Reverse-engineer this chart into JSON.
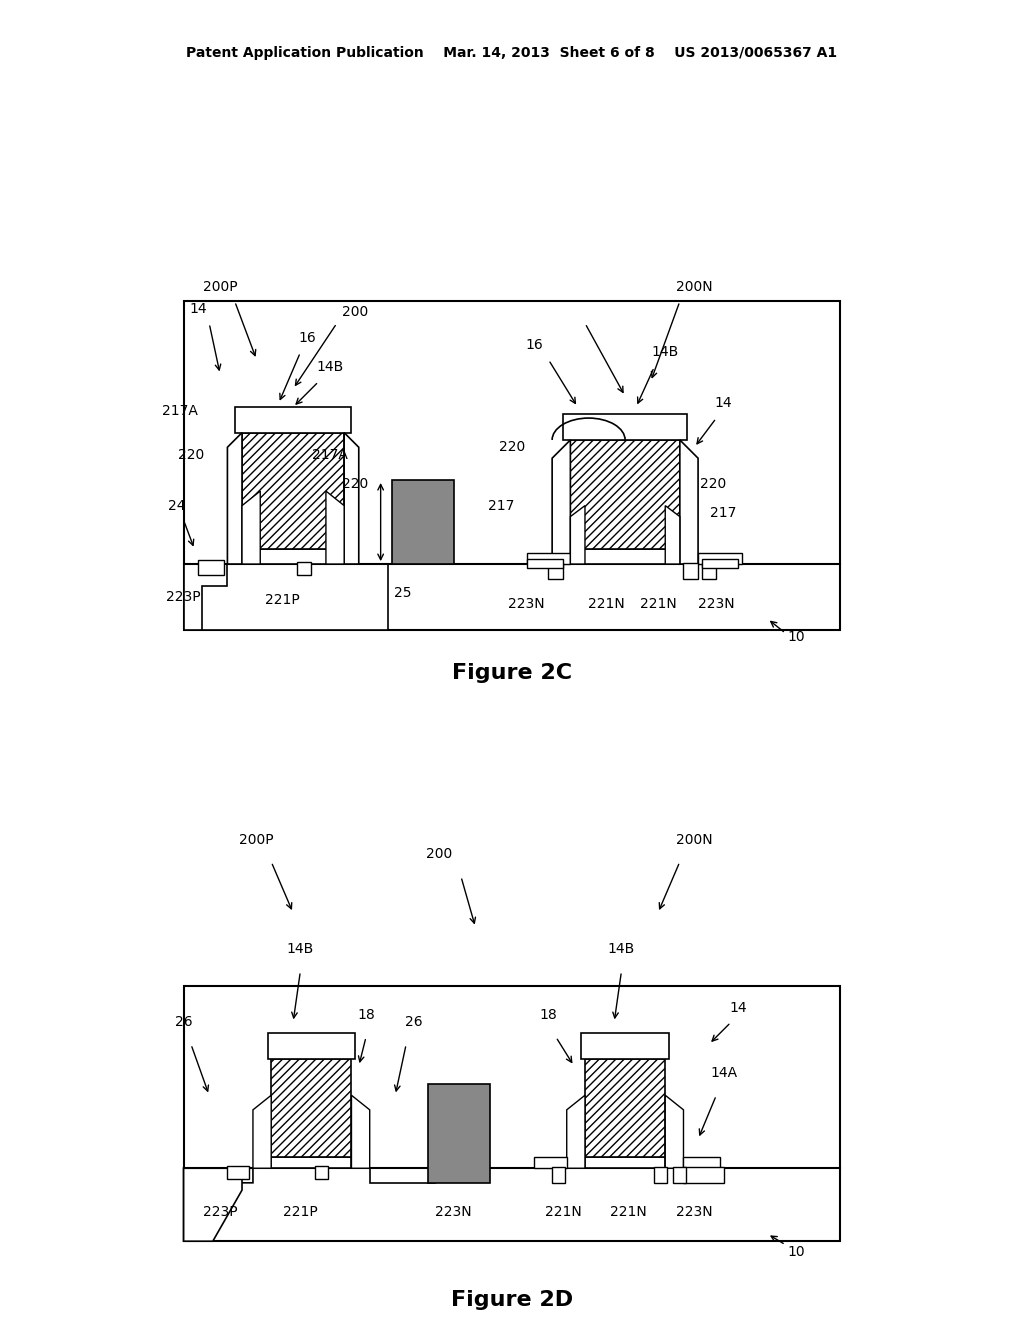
{
  "bg_color": "#ffffff",
  "line_color": "#000000",
  "hatch_color": "#000000",
  "gray_fill": "#888888",
  "header_text": "Patent Application Publication    Mar. 14, 2013  Sheet 6 of 8    US 2013/0065367 A1",
  "fig2c_title": "Figure 2C",
  "fig2d_title": "Figure 2D",
  "label_fontsize": 11,
  "title_fontsize": 18,
  "header_fontsize": 10
}
